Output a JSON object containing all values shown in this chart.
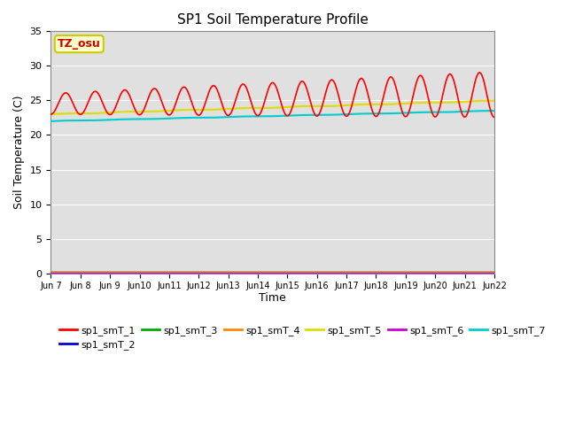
{
  "title": "SP1 Soil Temperature Profile",
  "xlabel": "Time",
  "ylabel": "Soil Temperature (C)",
  "ylim": [
    0,
    35
  ],
  "yticks": [
    0,
    5,
    10,
    15,
    20,
    25,
    30,
    35
  ],
  "annotation_text": "TZ_osu",
  "annotation_color": "#cc0000",
  "annotation_bg": "#ffffcc",
  "annotation_border": "#cccc00",
  "series": {
    "sp1_smT_1": {
      "color": "#ff0000",
      "lw": 1.2
    },
    "sp1_smT_2": {
      "color": "#0000cc",
      "lw": 1.0
    },
    "sp1_smT_3": {
      "color": "#00aa00",
      "lw": 1.0
    },
    "sp1_smT_4": {
      "color": "#ff8800",
      "lw": 1.0
    },
    "sp1_smT_5": {
      "color": "#dddd00",
      "lw": 1.5
    },
    "sp1_smT_6": {
      "color": "#cc00cc",
      "lw": 1.0
    },
    "sp1_smT_7": {
      "color": "#00cccc",
      "lw": 1.5
    }
  },
  "n_days": 15,
  "ppd": 24,
  "start_day": 7,
  "bg_color": "#e0e0e0",
  "fig_bg": "#ffffff",
  "grid_color": "#ffffff",
  "tick_fontsize": 7,
  "legend_fontsize": 8
}
